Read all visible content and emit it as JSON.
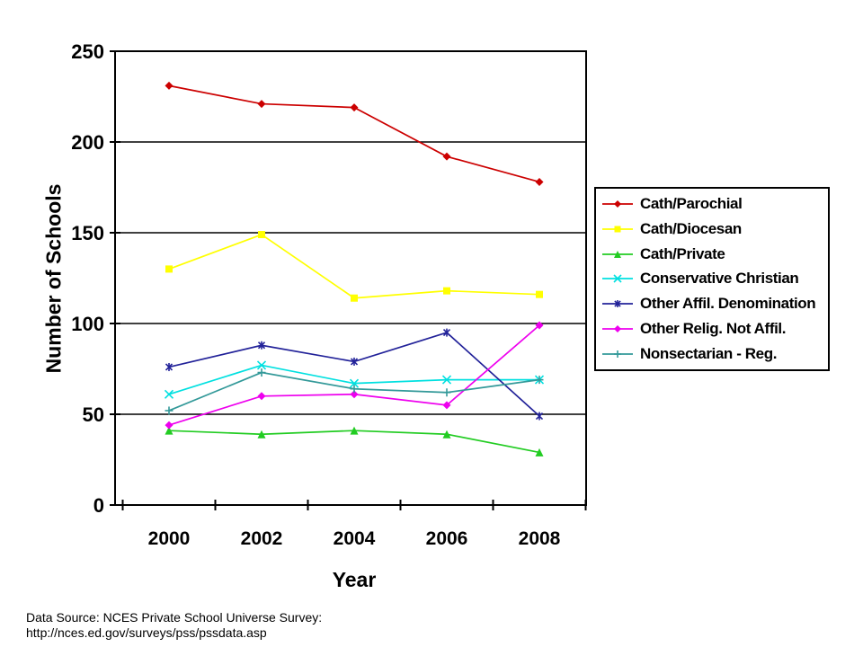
{
  "chart_data": {
    "type": "line",
    "x": [
      "2000",
      "2002",
      "2004",
      "2006",
      "2008"
    ],
    "xlabel": "Year",
    "ylabel": "Number of Schools",
    "ylim": [
      0,
      250
    ],
    "yticks": [
      0,
      50,
      100,
      150,
      200,
      250
    ],
    "grid": "horizontal",
    "legend_position": "right",
    "series": [
      {
        "name": "Cath/Parochial",
        "color": "#cc0000",
        "marker": "diamond",
        "values": [
          231,
          221,
          219,
          192,
          178
        ]
      },
      {
        "name": "Cath/Diocesan",
        "color": "#ffff00",
        "marker": "square",
        "values": [
          130,
          149,
          114,
          118,
          116
        ]
      },
      {
        "name": "Cath/Private",
        "color": "#22cc22",
        "marker": "triangle",
        "values": [
          41,
          39,
          41,
          39,
          29
        ]
      },
      {
        "name": "Conservative Christian",
        "color": "#00e0e0",
        "marker": "x",
        "values": [
          61,
          77,
          67,
          69,
          69
        ]
      },
      {
        "name": "Other Affil. Denomination",
        "color": "#222299",
        "marker": "asterisk",
        "values": [
          76,
          88,
          79,
          95,
          49
        ]
      },
      {
        "name": "Other Relig. Not Affil.",
        "color": "#ee00ee",
        "marker": "diamond",
        "values": [
          44,
          60,
          61,
          55,
          99
        ]
      },
      {
        "name": "Nonsectarian - Reg.",
        "color": "#339999",
        "marker": "plus",
        "values": [
          52,
          73,
          64,
          62,
          69
        ]
      }
    ]
  },
  "source": {
    "line1": "Data Source: NCES Private School Universe Survey:",
    "line2": "http://nces.ed.gov/surveys/pss/pssdata.asp"
  }
}
